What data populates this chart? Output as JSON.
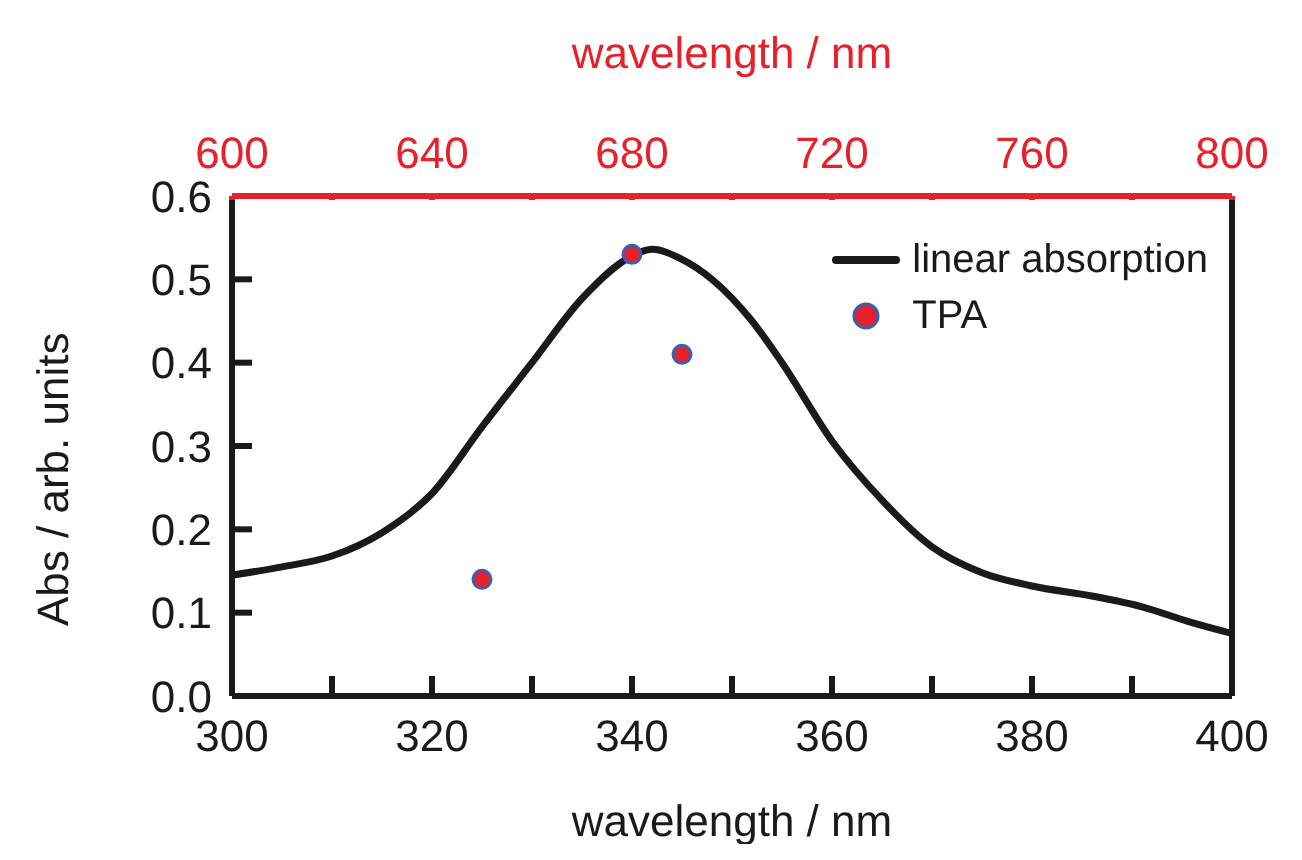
{
  "chart_data": {
    "type": "line",
    "xlabel": "wavelength / nm",
    "ylabel": "Abs / arb. units",
    "x2label": "wavelength / nm",
    "xlim": [
      300,
      400
    ],
    "xticks": [
      300,
      {
        "value": 310,
        "label": null
      },
      320,
      {
        "value": 330,
        "label": null
      },
      340,
      {
        "value": 350,
        "label": null
      },
      360,
      {
        "value": 370,
        "label": null
      },
      380,
      {
        "value": 390,
        "label": null
      },
      400
    ],
    "x2lim": [
      600,
      800
    ],
    "x2ticks": [
      600,
      {
        "value": 620,
        "label": null
      },
      640,
      {
        "value": 660,
        "label": null
      },
      680,
      {
        "value": 700,
        "label": null
      },
      720,
      {
        "value": 740,
        "label": null
      },
      760,
      {
        "value": 780,
        "label": null
      },
      800
    ],
    "ylim": [
      0,
      0.6
    ],
    "yticks": [
      {
        "value": 0,
        "label": "0.0"
      },
      0.1,
      0.2,
      0.3,
      0.4,
      0.5,
      0.6
    ],
    "grid": false,
    "legend": "top right",
    "series": [
      {
        "name": "linear absorption",
        "color": "#1a1a1a",
        "marker": "none",
        "line_style": "solid",
        "x": [
          300,
          305,
          310,
          315,
          320,
          325,
          330,
          335,
          340,
          342,
          345,
          348,
          352,
          355,
          360,
          365,
          370,
          375,
          380,
          386,
          391,
          396,
          400
        ],
        "values": [
          0.145,
          0.155,
          0.168,
          0.196,
          0.243,
          0.323,
          0.4,
          0.477,
          0.528,
          0.536,
          0.524,
          0.5,
          0.45,
          0.4,
          0.306,
          0.235,
          0.179,
          0.148,
          0.132,
          0.12,
          0.107,
          0.088,
          0.075
        ]
      },
      {
        "name": "TPA",
        "type": "scatter",
        "color": "#e8202a",
        "marker": "circle",
        "x": [
          325,
          340,
          345
        ],
        "values": [
          0.14,
          0.53,
          0.41
        ]
      }
    ]
  }
}
